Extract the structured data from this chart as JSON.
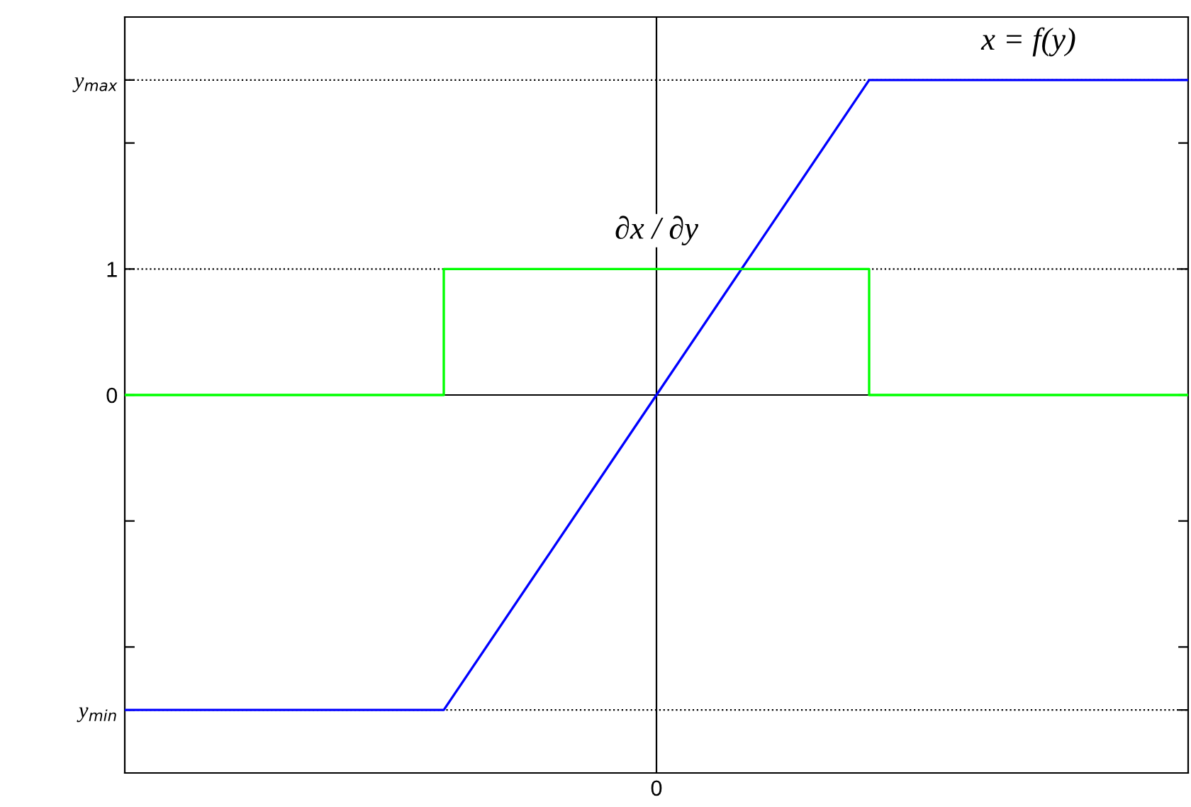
{
  "chart_data": {
    "type": "line",
    "categories": [
      null,
      null,
      null,
      null,
      null,
      "0",
      null,
      null,
      null,
      null,
      null
    ],
    "ylim": [
      -3,
      3
    ],
    "yticks": [
      {
        "value": -2.5,
        "label": "y$_{min}$"
      },
      {
        "value": -2,
        "label": null
      },
      {
        "value": -1,
        "label": null
      },
      {
        "value": 0,
        "label": "0"
      },
      {
        "value": 1,
        "label": "1"
      },
      {
        "value": 2,
        "label": null
      },
      {
        "value": 2.5,
        "label": "y$_{max}$"
      }
    ],
    "series": [
      {
        "name": "x = f(y)",
        "color": "#0000ff",
        "values": [
          -2.5,
          -2.5,
          -2.5,
          -2.5,
          -1.25,
          0,
          1.25,
          2.5,
          2.5,
          2.5,
          2.5
        ]
      },
      {
        "name": "∂x / ∂y",
        "type": "step",
        "color": "#00ff00",
        "values": [
          0,
          0,
          0,
          1,
          1,
          1,
          1,
          0,
          0,
          0,
          0
        ]
      }
    ],
    "ref_lines": [
      {
        "axis": "y",
        "value": 2.5,
        "color": "#000000",
        "line_style": "dotted"
      },
      {
        "axis": "y",
        "value": 1,
        "color": "#000000",
        "line_style": "dotted"
      },
      {
        "axis": "y",
        "value": -2.5,
        "color": "#000000",
        "line_style": "dotted"
      },
      {
        "axis": "y",
        "value": 0,
        "color": "#000000",
        "line_style": "solid"
      },
      {
        "axis": "x",
        "value": "0",
        "color": "#000000",
        "line_style": "solid"
      }
    ],
    "grid": false,
    "legend": false,
    "marker": "none",
    "line_style": "solid"
  }
}
